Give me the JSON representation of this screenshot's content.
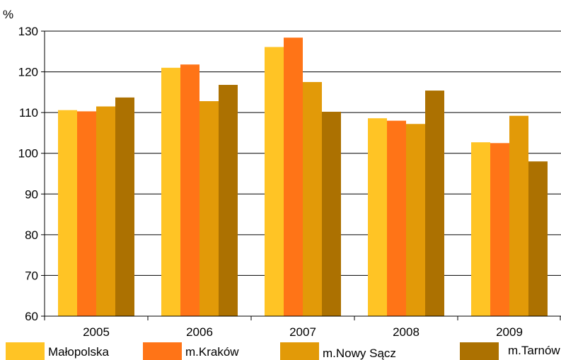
{
  "chart_data": {
    "type": "bar",
    "unit_label": "%",
    "categories": [
      "2005",
      "2006",
      "2007",
      "2008",
      "2009"
    ],
    "ylim": [
      60,
      130
    ],
    "yticks": [
      "60",
      "70",
      "80",
      "90",
      "100",
      "110",
      "120",
      "130"
    ],
    "grid": true,
    "legend_position": "bottom",
    "series": [
      {
        "name": "Małopolska",
        "color": "#FFC425",
        "values": [
          110.6,
          121.0,
          126.1,
          108.6,
          102.7
        ]
      },
      {
        "name": "m.Kraków",
        "color": "#FF7417",
        "values": [
          110.3,
          121.8,
          128.4,
          108.0,
          102.5
        ]
      },
      {
        "name": "m.Nowy Sącz",
        "color": "#E29A08",
        "values": [
          111.5,
          112.8,
          117.5,
          107.2,
          109.2
        ]
      },
      {
        "name": "m.Tarnów",
        "color": "#AC7101",
        "values": [
          113.7,
          116.8,
          110.2,
          115.4,
          98.0
        ]
      }
    ]
  }
}
